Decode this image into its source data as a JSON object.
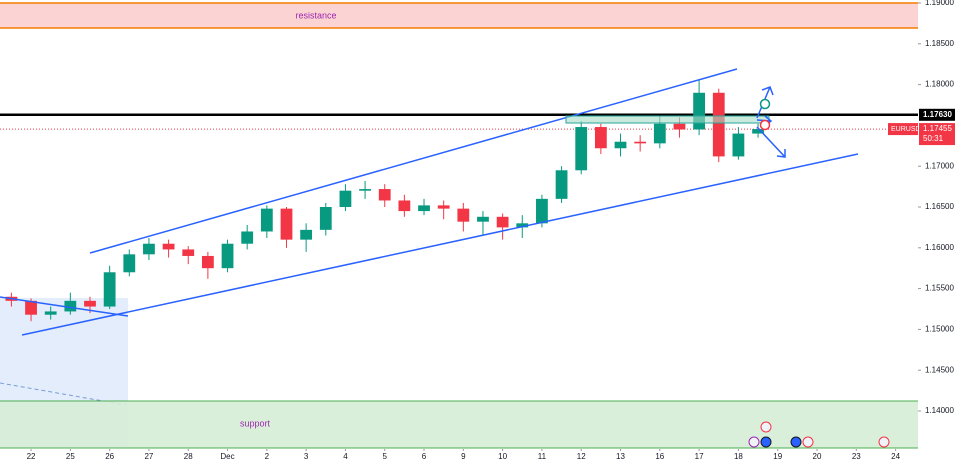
{
  "chart_data": {
    "type": "candlestick",
    "x": [
      -0.5,
      0,
      0.5,
      1,
      1.5,
      2,
      2.5,
      3,
      3.5,
      4,
      4.5,
      5,
      5.5,
      6,
      6.5,
      7,
      7.5,
      8,
      8.5,
      9,
      9.5,
      10,
      10.5,
      11,
      11.5,
      12,
      12.5,
      13,
      13.5,
      14,
      14.5,
      15,
      15.5,
      16,
      16.5,
      17,
      17.5,
      18,
      18.5
    ],
    "open": [
      1.154,
      1.1535,
      1.1518,
      1.1522,
      1.1535,
      1.1528,
      1.157,
      1.1592,
      1.1605,
      1.1598,
      1.159,
      1.1575,
      1.1605,
      1.162,
      1.1648,
      1.161,
      1.1622,
      1.165,
      1.167,
      1.1672,
      1.1658,
      1.1645,
      1.1652,
      1.1648,
      1.1632,
      1.1638,
      1.1625,
      1.163,
      1.166,
      1.1695,
      1.1748,
      1.1722,
      1.173,
      1.1728,
      1.1752,
      1.1745,
      1.179,
      1.1712,
      1.174
    ],
    "high": [
      1.1545,
      1.1538,
      1.1528,
      1.1545,
      1.154,
      1.1578,
      1.1598,
      1.1612,
      1.161,
      1.1602,
      1.1595,
      1.161,
      1.1628,
      1.1652,
      1.165,
      1.163,
      1.1655,
      1.1678,
      1.1682,
      1.1678,
      1.1665,
      1.166,
      1.1658,
      1.1655,
      1.1645,
      1.1642,
      1.164,
      1.1665,
      1.17,
      1.1755,
      1.1752,
      1.174,
      1.1738,
      1.1762,
      1.176,
      1.1805,
      1.1795,
      1.1748,
      1.1752
    ],
    "low": [
      1.1528,
      1.151,
      1.1512,
      1.1518,
      1.152,
      1.1525,
      1.1565,
      1.1585,
      1.1588,
      1.158,
      1.1562,
      1.157,
      1.1598,
      1.1612,
      1.16,
      1.1595,
      1.1615,
      1.1645,
      1.166,
      1.165,
      1.1638,
      1.164,
      1.1635,
      1.162,
      1.1615,
      1.161,
      1.1612,
      1.1625,
      1.1655,
      1.169,
      1.1715,
      1.1712,
      1.1718,
      1.1722,
      1.1735,
      1.1738,
      1.1705,
      1.1708,
      1.1735
    ],
    "close": [
      1.1535,
      1.1518,
      1.1522,
      1.1535,
      1.1528,
      1.157,
      1.1592,
      1.1605,
      1.1598,
      1.159,
      1.1575,
      1.1605,
      1.162,
      1.1648,
      1.161,
      1.1622,
      1.165,
      1.167,
      1.1672,
      1.1658,
      1.1645,
      1.1652,
      1.1648,
      1.1632,
      1.1638,
      1.1625,
      1.163,
      1.166,
      1.1695,
      1.1748,
      1.1722,
      1.173,
      1.1728,
      1.1752,
      1.1745,
      1.179,
      1.1712,
      1.174,
      1.17455
    ],
    "up_color": "#089981",
    "down_color": "#f23645",
    "xlim": [
      -0.79,
      22.57
    ],
    "xticks": [
      {
        "value": 0,
        "label": "22"
      },
      {
        "value": 1,
        "label": "25"
      },
      {
        "value": 2,
        "label": "26"
      },
      {
        "value": 3,
        "label": "27"
      },
      {
        "value": 4,
        "label": "28"
      },
      {
        "value": 5,
        "label": "Dec"
      },
      {
        "value": 6,
        "label": "2"
      },
      {
        "value": 7,
        "label": "3"
      },
      {
        "value": 8,
        "label": "4"
      },
      {
        "value": 9,
        "label": "5"
      },
      {
        "value": 10,
        "label": "6"
      },
      {
        "value": 11,
        "label": "9"
      },
      {
        "value": 12,
        "label": "10"
      },
      {
        "value": 13,
        "label": "11"
      },
      {
        "value": 14,
        "label": "12"
      },
      {
        "value": 15,
        "label": "13"
      },
      {
        "value": 16,
        "label": "16"
      },
      {
        "value": 17,
        "label": "17"
      },
      {
        "value": 18,
        "label": "18"
      },
      {
        "value": 19,
        "label": "19"
      },
      {
        "value": 20,
        "label": "20"
      },
      {
        "value": 21,
        "label": "23"
      },
      {
        "value": 22,
        "label": "24"
      }
    ],
    "ylim": [
      1.13387,
      1.19037
    ],
    "yticks": [
      {
        "value": 1.19,
        "label": "1.19000"
      },
      {
        "value": 1.185,
        "label": "1.18500"
      },
      {
        "value": 1.18,
        "label": "1.18000"
      },
      {
        "value": 1.17,
        "label": "1.17000"
      },
      {
        "value": 1.165,
        "label": "1.16500"
      },
      {
        "value": 1.16,
        "label": "1.16000"
      },
      {
        "value": 1.155,
        "label": "1.15500"
      },
      {
        "value": 1.15,
        "label": "1.15000"
      },
      {
        "value": 1.145,
        "label": "1.14500"
      },
      {
        "value": 1.14,
        "label": "1.14000"
      }
    ],
    "grid": false,
    "level": {
      "value": 1.1763,
      "label": "1.17630"
    },
    "last_price": {
      "value": 1.17455,
      "label": "1.17455"
    },
    "symbol": "EURUSD",
    "countdown": "50:31",
    "resistance_label": "resistance",
    "support_label": "support"
  }
}
